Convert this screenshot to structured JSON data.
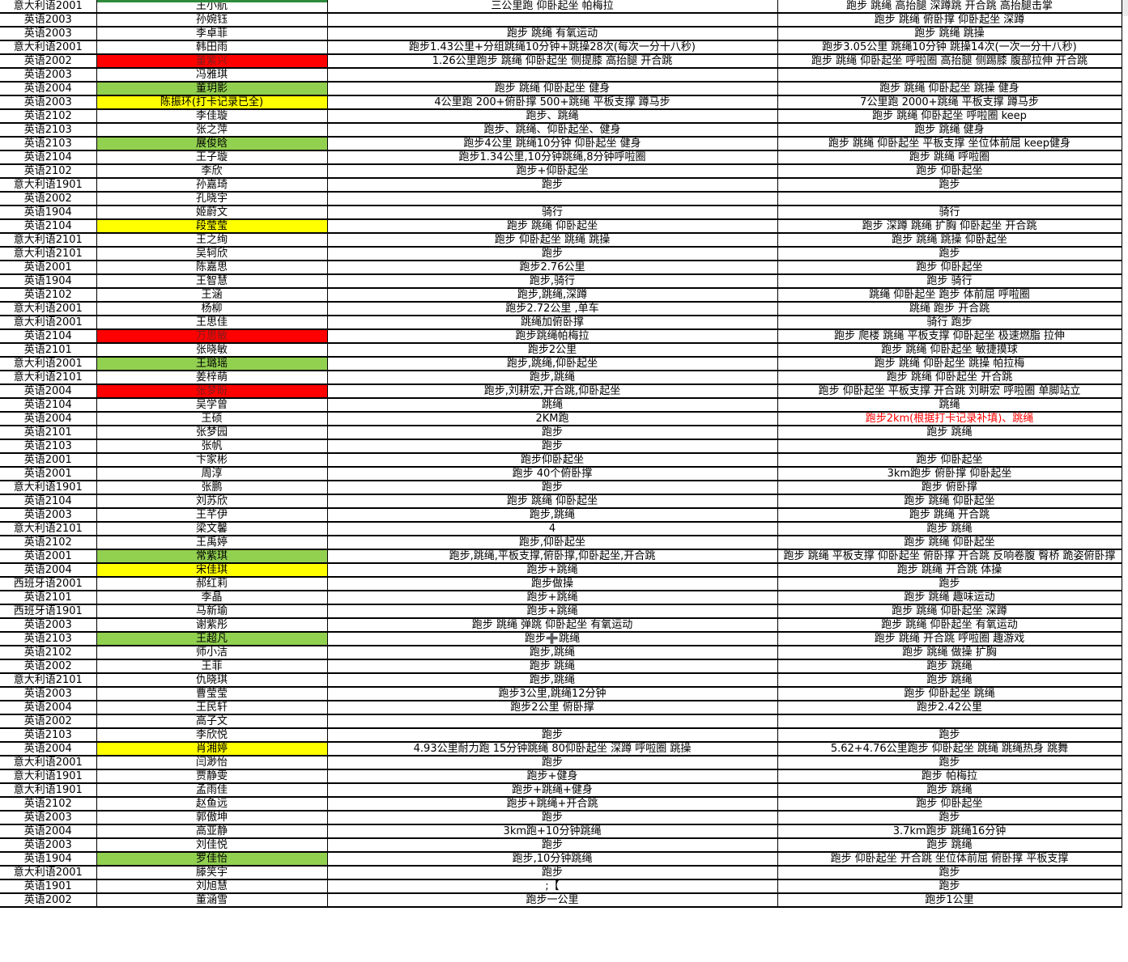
{
  "colors": {
    "highlight_red": "#ff0000",
    "highlight_green": "#92d050",
    "highlight_yellow": "#ffff00",
    "red_cell_text": "#7f1d1d",
    "red_note_text": "#ff0000",
    "grid_line": "#000000",
    "top_remnant_green": "#2e8b3d"
  },
  "rows": [
    {
      "class": "意大利语2001",
      "name": "王小航",
      "hl": "none",
      "a": "三公里跑 仰卧起坐 帕梅拉",
      "b": "跑步 跳绳 高抬腿 深蹲跳 开合跳 高抬腿击掌"
    },
    {
      "class": "英语2003",
      "name": "孙婉钰",
      "hl": "none",
      "a": "",
      "b": "跑步 跳绳 俯卧撑 仰卧起坐 深蹲"
    },
    {
      "class": "英语2003",
      "name": "李卓菲",
      "hl": "none",
      "a": "跑步 跳绳 有氧运动",
      "b": "跑步 跳绳 跳操"
    },
    {
      "class": "意大利语2001",
      "name": "韩田雨",
      "hl": "none",
      "a": "跑步1.43公里+分组跳绳10分钟+跳操28次(每次一分十八秒)",
      "b": "跑步3.05公里 跳绳10分钟 跳操14次(一次一分十八秒)"
    },
    {
      "class": "英语2002",
      "name": "董紫兴",
      "hl": "red",
      "a": "1.26公里跑步 跳绳 仰卧起坐 侧提膝 高抬腿 开合跳",
      "b": "跑步 跳绳 仰卧起坐 呼啦圈 高抬腿 侧踢膝 腹部拉伸 开合跳"
    },
    {
      "class": "英语2003",
      "name": "冯雅琪",
      "hl": "none",
      "a": "",
      "b": ""
    },
    {
      "class": "英语2004",
      "name": "董玥影",
      "hl": "green",
      "a": "跑步 跳绳 仰卧起坐 健身",
      "b": "跑步 跳绳 仰卧起坐 跳操 健身"
    },
    {
      "class": "英语2003",
      "name": "陈振环(打卡记录已全)",
      "hl": "yellow",
      "a": "4公里跑 200+俯卧撑 500+跳绳 平板支撑 蹲马步",
      "b": "7公里跑 2000+跳绳 平板支撑 蹲马步"
    },
    {
      "class": "英语2102",
      "name": "李佳璇",
      "hl": "none",
      "a": "跑步、跳绳",
      "b": "跑步 跳绳 仰卧起坐 呼啦圈 keep"
    },
    {
      "class": "英语2103",
      "name": "张之萍",
      "hl": "none",
      "a": "跑步、跳绳、仰卧起坐、健身",
      "b": "跑步 跳绳 健身"
    },
    {
      "class": "英语2103",
      "name": "展俊晗",
      "hl": "green",
      "a": "跑步4公里 跳绳10分钟 仰卧起坐 健身",
      "b": "跑步 跳绳 仰卧起坐 平板支撑 坐位体前屈 keep健身"
    },
    {
      "class": "英语2104",
      "name": "王子璇",
      "hl": "none",
      "a": "跑步1.34公里,10分钟跳绳,8分钟呼啦圈",
      "b": "跑步 跳绳 呼啦圈"
    },
    {
      "class": "英语2102",
      "name": "李欣",
      "hl": "none",
      "a": "跑步+仰卧起坐",
      "b": "跑步 仰卧起坐"
    },
    {
      "class": "意大利语1901",
      "name": "孙嘉琦",
      "hl": "none",
      "a": "跑步",
      "b": "跑步"
    },
    {
      "class": "英语2002",
      "name": "孔晓宇",
      "hl": "none",
      "a": "",
      "b": ""
    },
    {
      "class": "英语1904",
      "name": "姬蔚文",
      "hl": "none",
      "a": "骑行",
      "b": "骑行"
    },
    {
      "class": "英语2104",
      "name": "段莹莹",
      "hl": "yellow",
      "a": "跑步 跳绳 仰卧起坐",
      "b": "跑步 深蹲 跳绳 扩胸 仰卧起坐 开合跳"
    },
    {
      "class": "意大利语2101",
      "name": "王之绚",
      "hl": "none",
      "a": "跑步 仰卧起坐 跳绳 跳操",
      "b": "跑步 跳绳 跳操 仰卧起坐"
    },
    {
      "class": "意大利语2101",
      "name": "吴轲欣",
      "hl": "none",
      "a": "跑步",
      "b": "跑步"
    },
    {
      "class": "英语2001",
      "name": "陈嘉思",
      "hl": "none",
      "a": "跑步2.76公里",
      "b": "跑步 仰卧起坐"
    },
    {
      "class": "英语1904",
      "name": "王智慧",
      "hl": "none",
      "a": "跑步,骑行",
      "b": "跑步 骑行"
    },
    {
      "class": "英语2102",
      "name": "王涵",
      "hl": "none",
      "a": "跑步,跳绳,深蹲",
      "b": "跳绳 仰卧起坐 跑步 体前屈 呼啦圈"
    },
    {
      "class": "意大利语2001",
      "name": "杨柳",
      "hl": "none",
      "a": "跑步2.72公里 ,单车",
      "b": "跳绳 跑步 开合跳"
    },
    {
      "class": "意大利语2001",
      "name": "王思佳",
      "hl": "none",
      "a": "跳绳加俯卧撑",
      "b": "骑行 跑步"
    },
    {
      "class": "英语2104",
      "name": "万思敏",
      "hl": "red",
      "a": "跑步跳绳帕梅拉",
      "b": "跑步 爬楼 跳绳 平板支撑 仰卧起坐 极速燃脂 拉伸"
    },
    {
      "class": "英语2101",
      "name": "张晓敏",
      "hl": "none",
      "a": "跑步2公里",
      "b": "跑步 跳绳 仰卧起坐 敏捷摸球"
    },
    {
      "class": "意大利语2001",
      "name": "王璐瑶",
      "hl": "green",
      "a": "跑步,跳绳,仰卧起坐",
      "b": "跑步 跳绳 仰卧起坐 跳操 帕拉梅"
    },
    {
      "class": "意大利语2101",
      "name": "姜梓萌",
      "hl": "none",
      "a": "跑步,跳绳",
      "b": "跑步 跳绳 仰卧起坐 开合跳"
    },
    {
      "class": "英语2004",
      "name": "张梦盼",
      "hl": "red",
      "a": "跑步,刘耕宏,开合跳,仰卧起坐",
      "b": "跑步 仰卧起坐 平板支撑 开合跳 刘畊宏 呼啦圈 单脚站立"
    },
    {
      "class": "英语2104",
      "name": "吴学曾",
      "hl": "none",
      "a": "跳绳",
      "b": "跳绳"
    },
    {
      "class": "英语2004",
      "name": "王硕",
      "hl": "none",
      "a": "2KM跑",
      "b": "跑步2km(根据打卡记录补填)、跳绳",
      "b_red": true
    },
    {
      "class": "英语2101",
      "name": "张梦园",
      "hl": "none",
      "a": "跑步",
      "b": "跑步 跳绳"
    },
    {
      "class": "英语2103",
      "name": "张帆",
      "hl": "none",
      "a": "跑步",
      "b": ""
    },
    {
      "class": "英语2001",
      "name": "卞家彬",
      "hl": "none",
      "a": "跑步仰卧起坐",
      "b": "跑步 仰卧起坐"
    },
    {
      "class": "英语2001",
      "name": "周淳",
      "hl": "none",
      "a": "跑步   40个俯卧撑",
      "b": "3km跑步 俯卧撑 仰卧起坐"
    },
    {
      "class": "意大利语1901",
      "name": "张鹏",
      "hl": "none",
      "a": "跑步",
      "b": "跑步 俯卧撑"
    },
    {
      "class": "英语2104",
      "name": "刘苏欣",
      "hl": "none",
      "a": "跑步 跳绳 仰卧起坐",
      "b": "跑步 跳绳 仰卧起坐"
    },
    {
      "class": "英语2003",
      "name": "王芊伊",
      "hl": "none",
      "a": "跑步,跳绳",
      "b": "跑步 跳绳 开合跳"
    },
    {
      "class": "意大利语2101",
      "name": "梁文馨",
      "hl": "none",
      "a": "4",
      "b": "跑步 跳绳"
    },
    {
      "class": "英语2102",
      "name": "王禹婷",
      "hl": "none",
      "a": "跑步,仰卧起坐",
      "b": "跑步 跳绳 仰卧起坐"
    },
    {
      "class": "英语2001",
      "name": "常紫琪",
      "hl": "green",
      "a": "跑步,跳绳,平板支撑,俯卧撑,仰卧起坐,开合跳",
      "b": "跑步 跳绳 平板支撑 仰卧起坐 俯卧撑 开合跳 反响卷腹 臀桥 跪姿俯卧撑"
    },
    {
      "class": "英语2004",
      "name": "宋佳琪",
      "hl": "yellow",
      "a": "跑步+跳绳",
      "b": "跑步 跳绳 开合跳 体操"
    },
    {
      "class": "西班牙语2001",
      "name": "郝红莉",
      "hl": "none",
      "a": "跑步做操",
      "b": "跑步"
    },
    {
      "class": "英语2101",
      "name": "李晶",
      "hl": "none",
      "a": "跑步+跳绳",
      "b": "跑步 跳绳 趣味运动"
    },
    {
      "class": "西班牙语1901",
      "name": "马新瑜",
      "hl": "none",
      "a": "跑步+跳绳",
      "b": "跑步 跳绳 仰卧起坐 深蹲"
    },
    {
      "class": "英语2003",
      "name": "谢紫彤",
      "hl": "none",
      "a": "跑步 跳绳 弹跳 仰卧起坐 有氧运动",
      "b": "跑步 跳绳 仰卧起坐 有氧运动"
    },
    {
      "class": "英语2103",
      "name": "王超凡",
      "hl": "green",
      "a": "跑步➕跳绳",
      "b": "跑步 跳绳 开合跳 呼啦圈 趣游戏"
    },
    {
      "class": "英语2102",
      "name": "师小洁",
      "hl": "none",
      "a": "跑步,跳绳",
      "b": "跑步 跳绳 做操 扩胸"
    },
    {
      "class": "英语2002",
      "name": "王菲",
      "hl": "none",
      "a": "跑步 跳绳",
      "b": "跑步 跳绳"
    },
    {
      "class": "意大利语2101",
      "name": "仇晓琪",
      "hl": "none",
      "a": "跑步,跳绳",
      "b": "跑步 跳绳"
    },
    {
      "class": "英语2003",
      "name": "曹莹莹",
      "hl": "none",
      "a": "跑步3公里,跳绳12分钟",
      "b": "跑步 仰卧起坐 跳绳"
    },
    {
      "class": "英语2004",
      "name": "王民轩",
      "hl": "none",
      "a": "跑步2公里 俯卧撑",
      "b": "跑步2.42公里"
    },
    {
      "class": "英语2002",
      "name": "高子文",
      "hl": "none",
      "a": "",
      "b": ""
    },
    {
      "class": "英语2103",
      "name": "李欣悦",
      "hl": "none",
      "a": "跑步",
      "b": "跑步"
    },
    {
      "class": "英语2004",
      "name": "肖湘婷",
      "hl": "yellow",
      "a": "4.93公里耐力跑 15分钟跳绳 80仰卧起坐 深蹲 呼啦圈 跳操",
      "b": "5.62+4.76公里跑步 仰卧起坐 跳绳 跳绳热身 跳舞"
    },
    {
      "class": "意大利语2001",
      "name": "闫渺怡",
      "hl": "none",
      "a": "跑步",
      "b": "跑步"
    },
    {
      "class": "意大利语1901",
      "name": "贾静雯",
      "hl": "none",
      "a": "跑步+健身",
      "b": "跑步 帕梅拉"
    },
    {
      "class": "意大利语1901",
      "name": "孟雨佳",
      "hl": "none",
      "a": "跑步+跳绳+健身",
      "b": "跑步 跳绳"
    },
    {
      "class": "英语2102",
      "name": "赵鱼远",
      "hl": "none",
      "a": "跑步+跳绳+开合跳",
      "b": "跑步 仰卧起坐"
    },
    {
      "class": "英语2003",
      "name": "郭傲坤",
      "hl": "none",
      "a": "跑步",
      "b": "跑步"
    },
    {
      "class": "英语2004",
      "name": "高亚静",
      "hl": "none",
      "a": "3km跑+10分钟跳绳",
      "b": "3.7km跑步 跳绳16分钟"
    },
    {
      "class": "英语2003",
      "name": "刘佳悦",
      "hl": "none",
      "a": "跑步",
      "b": "跑步 跳绳"
    },
    {
      "class": "英语1904",
      "name": "罗佳怡",
      "hl": "green",
      "a": "跑步,10分钟跳绳",
      "b": "跑步 仰卧起坐 开合跳 坐位体前屈 俯卧撑 平板支撑"
    },
    {
      "class": "意大利语2001",
      "name": "滕笑宇",
      "hl": "none",
      "a": "跑步",
      "b": "跑步"
    },
    {
      "class": "英语1901",
      "name": "刘旭慧",
      "hl": "none",
      "a": ";【",
      "b": "跑步"
    },
    {
      "class": "英语2002",
      "name": "董涵雪",
      "hl": "none",
      "a": "跑步一公里",
      "b": "跑步1公里"
    }
  ]
}
